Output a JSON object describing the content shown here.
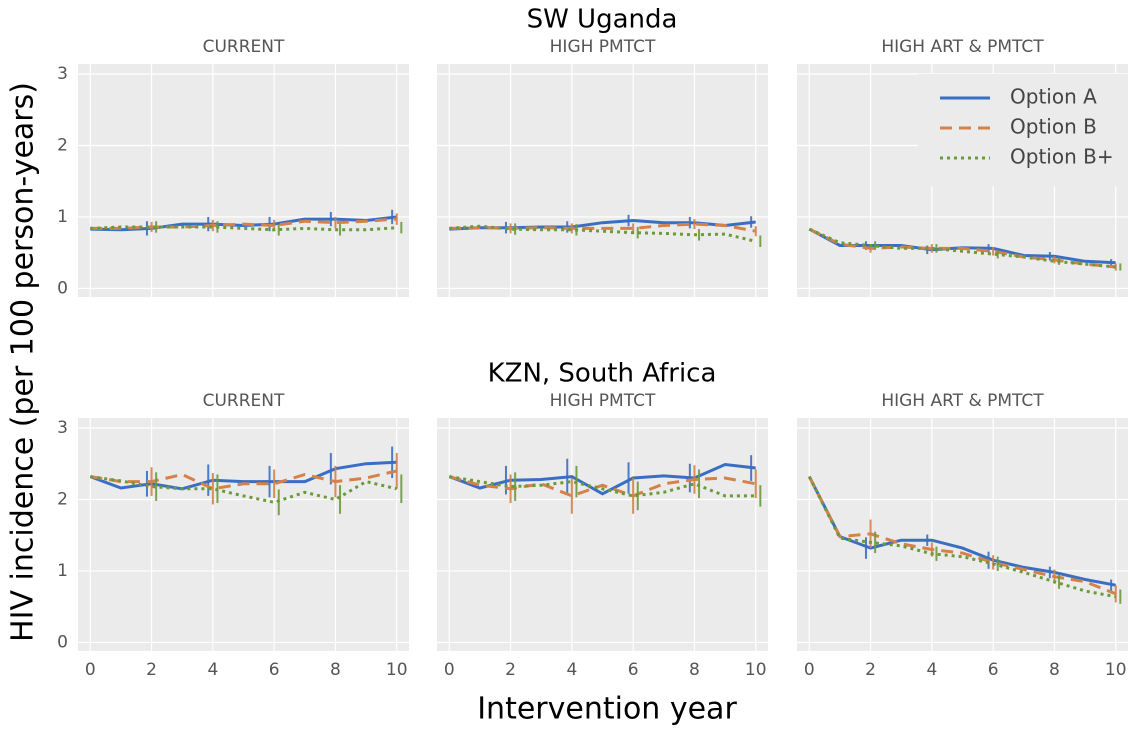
{
  "row_titles": [
    "SW Uganda",
    "KZN, South Africa"
  ],
  "ylabel": "HIV incidence (per 100 person-years)",
  "xlabel": "Intervention year",
  "chart_data": [
    {
      "type": "line",
      "title": "CURRENT",
      "x": [
        0,
        1,
        2,
        3,
        4,
        5,
        6,
        7,
        8,
        9,
        10
      ],
      "xlim": [
        -0.4,
        10.4
      ],
      "ylim": [
        -0.12,
        3.14
      ],
      "xticks": [
        0,
        2,
        4,
        6,
        8,
        10
      ],
      "yticks": [
        0,
        1,
        2,
        3
      ],
      "grid": true,
      "series": [
        {
          "name": "Option A",
          "color": "#3a6ec4",
          "dash": "solid",
          "values": [
            0.83,
            0.82,
            0.84,
            0.9,
            0.9,
            0.88,
            0.9,
            0.97,
            0.97,
            0.95,
            1.0
          ],
          "errors": [
            null,
            null,
            0.1,
            null,
            0.1,
            null,
            0.1,
            null,
            0.1,
            null,
            0.1
          ]
        },
        {
          "name": "Option B",
          "color": "#d4814a",
          "dash": "dashed",
          "values": [
            0.84,
            0.84,
            0.86,
            0.86,
            0.88,
            0.9,
            0.88,
            0.94,
            0.92,
            0.94,
            0.97
          ],
          "errors": [
            null,
            null,
            0.07,
            null,
            0.08,
            null,
            0.08,
            null,
            0.08,
            null,
            0.08
          ]
        },
        {
          "name": "Option B+",
          "color": "#6b9a3a",
          "dash": "dotted",
          "values": [
            0.84,
            0.86,
            0.86,
            0.86,
            0.86,
            0.84,
            0.82,
            0.84,
            0.82,
            0.82,
            0.85
          ],
          "errors": [
            null,
            null,
            0.08,
            null,
            0.08,
            null,
            0.08,
            null,
            0.08,
            null,
            0.08
          ]
        }
      ]
    },
    {
      "type": "line",
      "title": "HIGH PMTCT",
      "x": [
        0,
        1,
        2,
        3,
        4,
        5,
        6,
        7,
        8,
        9,
        10
      ],
      "xlim": [
        -0.4,
        10.4
      ],
      "ylim": [
        -0.12,
        3.14
      ],
      "xticks": [
        0,
        2,
        4,
        6,
        8,
        10
      ],
      "yticks": [
        0,
        1,
        2,
        3
      ],
      "grid": true,
      "series": [
        {
          "name": "Option A",
          "color": "#3a6ec4",
          "dash": "solid",
          "values": [
            0.83,
            0.85,
            0.85,
            0.86,
            0.86,
            0.92,
            0.95,
            0.92,
            0.92,
            0.88,
            0.93
          ],
          "errors": [
            null,
            null,
            0.08,
            null,
            0.08,
            null,
            0.08,
            null,
            0.08,
            null,
            0.08
          ]
        },
        {
          "name": "Option B",
          "color": "#d4814a",
          "dash": "dashed",
          "values": [
            0.84,
            0.85,
            0.84,
            0.85,
            0.84,
            0.84,
            0.84,
            0.88,
            0.9,
            0.88,
            0.8
          ],
          "errors": [
            null,
            null,
            0.07,
            null,
            0.07,
            null,
            0.07,
            null,
            0.07,
            null,
            0.07
          ]
        },
        {
          "name": "Option B+",
          "color": "#6b9a3a",
          "dash": "dotted",
          "values": [
            0.84,
            0.87,
            0.83,
            0.82,
            0.82,
            0.8,
            0.78,
            0.77,
            0.75,
            0.76,
            0.66
          ],
          "errors": [
            null,
            null,
            0.08,
            null,
            0.08,
            null,
            0.08,
            null,
            0.08,
            null,
            0.08
          ]
        }
      ]
    },
    {
      "type": "line",
      "title": "HIGH ART & PMTCT",
      "x": [
        0,
        1,
        2,
        3,
        4,
        5,
        6,
        7,
        8,
        9,
        10
      ],
      "xlim": [
        -0.4,
        10.4
      ],
      "ylim": [
        -0.12,
        3.14
      ],
      "xticks": [
        0,
        2,
        4,
        6,
        8,
        10
      ],
      "yticks": [
        0,
        1,
        2,
        3
      ],
      "grid": true,
      "legend": "upper right",
      "series": [
        {
          "name": "Option A",
          "color": "#3a6ec4",
          "dash": "solid",
          "values": [
            0.83,
            0.6,
            0.6,
            0.6,
            0.54,
            0.57,
            0.56,
            0.46,
            0.45,
            0.38,
            0.36
          ],
          "errors": [
            null,
            null,
            0.06,
            null,
            0.06,
            null,
            0.06,
            null,
            0.06,
            null,
            0.05
          ]
        },
        {
          "name": "Option B",
          "color": "#d4814a",
          "dash": "dashed",
          "values": [
            0.83,
            0.62,
            0.56,
            0.58,
            0.56,
            0.56,
            0.52,
            0.44,
            0.4,
            0.34,
            0.3
          ],
          "errors": [
            null,
            null,
            0.06,
            null,
            0.06,
            null,
            0.06,
            null,
            0.05,
            null,
            0.05
          ]
        },
        {
          "name": "Option B+",
          "color": "#6b9a3a",
          "dash": "dotted",
          "values": [
            0.83,
            0.64,
            0.6,
            0.56,
            0.56,
            0.52,
            0.48,
            0.44,
            0.38,
            0.34,
            0.3
          ],
          "errors": [
            null,
            null,
            0.06,
            null,
            0.06,
            null,
            0.06,
            null,
            0.05,
            null,
            0.05
          ]
        }
      ]
    },
    {
      "type": "line",
      "title": "CURRENT",
      "x": [
        0,
        1,
        2,
        3,
        4,
        5,
        6,
        7,
        8,
        9,
        10
      ],
      "xlim": [
        -0.4,
        10.4
      ],
      "ylim": [
        -0.12,
        3.14
      ],
      "xticks": [
        0,
        2,
        4,
        6,
        8,
        10
      ],
      "yticks": [
        0,
        1,
        2,
        3
      ],
      "grid": true,
      "series": [
        {
          "name": "Option A",
          "color": "#3a6ec4",
          "dash": "solid",
          "values": [
            2.32,
            2.16,
            2.22,
            2.15,
            2.27,
            2.25,
            2.25,
            2.25,
            2.43,
            2.5,
            2.52
          ],
          "errors": [
            null,
            null,
            0.18,
            null,
            0.22,
            null,
            0.22,
            null,
            0.22,
            null,
            0.22
          ]
        },
        {
          "name": "Option B",
          "color": "#d4814a",
          "dash": "dashed",
          "values": [
            2.32,
            2.25,
            2.25,
            2.35,
            2.15,
            2.22,
            2.22,
            2.35,
            2.25,
            2.3,
            2.4
          ],
          "errors": [
            null,
            null,
            0.2,
            null,
            0.22,
            null,
            0.2,
            null,
            0.22,
            null,
            0.25
          ]
        },
        {
          "name": "Option B+",
          "color": "#6b9a3a",
          "dash": "dotted",
          "values": [
            2.32,
            2.26,
            2.18,
            2.15,
            2.15,
            2.05,
            1.96,
            2.1,
            2.0,
            2.25,
            2.15
          ],
          "errors": [
            null,
            null,
            0.2,
            null,
            0.2,
            null,
            0.18,
            null,
            0.2,
            null,
            0.2
          ]
        }
      ]
    },
    {
      "type": "line",
      "title": "HIGH PMTCT",
      "x": [
        0,
        1,
        2,
        3,
        4,
        5,
        6,
        7,
        8,
        9,
        10
      ],
      "xlim": [
        -0.4,
        10.4
      ],
      "ylim": [
        -0.12,
        3.14
      ],
      "xticks": [
        0,
        2,
        4,
        6,
        8,
        10
      ],
      "yticks": [
        0,
        1,
        2,
        3
      ],
      "grid": true,
      "series": [
        {
          "name": "Option A",
          "color": "#3a6ec4",
          "dash": "solid",
          "values": [
            2.32,
            2.16,
            2.27,
            2.28,
            2.32,
            2.08,
            2.3,
            2.33,
            2.3,
            2.49,
            2.44
          ],
          "errors": [
            null,
            null,
            0.2,
            null,
            0.25,
            null,
            0.22,
            null,
            0.2,
            null,
            0.18
          ]
        },
        {
          "name": "Option B",
          "color": "#d4814a",
          "dash": "dashed",
          "values": [
            2.32,
            2.2,
            2.15,
            2.22,
            2.05,
            2.2,
            2.05,
            2.22,
            2.28,
            2.3,
            2.22
          ],
          "errors": [
            null,
            null,
            0.2,
            null,
            0.25,
            null,
            0.25,
            null,
            0.2,
            null,
            0.2
          ]
        },
        {
          "name": "Option B+",
          "color": "#6b9a3a",
          "dash": "dotted",
          "values": [
            2.32,
            2.25,
            2.18,
            2.2,
            2.25,
            2.15,
            2.05,
            2.1,
            2.22,
            2.05,
            2.05
          ],
          "errors": [
            null,
            null,
            0.2,
            null,
            0.22,
            null,
            0.2,
            null,
            0.2,
            null,
            0.15
          ]
        }
      ]
    },
    {
      "type": "line",
      "title": "HIGH ART & PMTCT",
      "x": [
        0,
        1,
        2,
        3,
        4,
        5,
        6,
        7,
        8,
        9,
        10
      ],
      "xlim": [
        -0.4,
        10.4
      ],
      "ylim": [
        -0.12,
        3.14
      ],
      "xticks": [
        0,
        2,
        4,
        6,
        8,
        10
      ],
      "yticks": [
        0,
        1,
        2,
        3
      ],
      "grid": true,
      "series": [
        {
          "name": "Option A",
          "color": "#3a6ec4",
          "dash": "solid",
          "values": [
            2.32,
            1.48,
            1.32,
            1.43,
            1.43,
            1.32,
            1.15,
            1.05,
            0.98,
            0.88,
            0.8
          ],
          "errors": [
            null,
            null,
            0.15,
            null,
            0.08,
            null,
            0.12,
            null,
            0.08,
            null,
            0.08
          ]
        },
        {
          "name": "Option B",
          "color": "#d4814a",
          "dash": "dashed",
          "values": [
            2.32,
            1.48,
            1.52,
            1.38,
            1.3,
            1.25,
            1.12,
            1.02,
            0.92,
            0.85,
            0.68
          ],
          "errors": [
            null,
            null,
            0.2,
            null,
            0.1,
            null,
            0.1,
            null,
            0.1,
            null,
            0.12
          ]
        },
        {
          "name": "Option B+",
          "color": "#6b9a3a",
          "dash": "dotted",
          "values": [
            2.32,
            1.46,
            1.4,
            1.35,
            1.24,
            1.2,
            1.1,
            0.98,
            0.85,
            0.72,
            0.64
          ],
          "errors": [
            null,
            null,
            0.15,
            null,
            0.1,
            null,
            0.1,
            null,
            0.1,
            null,
            0.1
          ]
        }
      ]
    }
  ]
}
